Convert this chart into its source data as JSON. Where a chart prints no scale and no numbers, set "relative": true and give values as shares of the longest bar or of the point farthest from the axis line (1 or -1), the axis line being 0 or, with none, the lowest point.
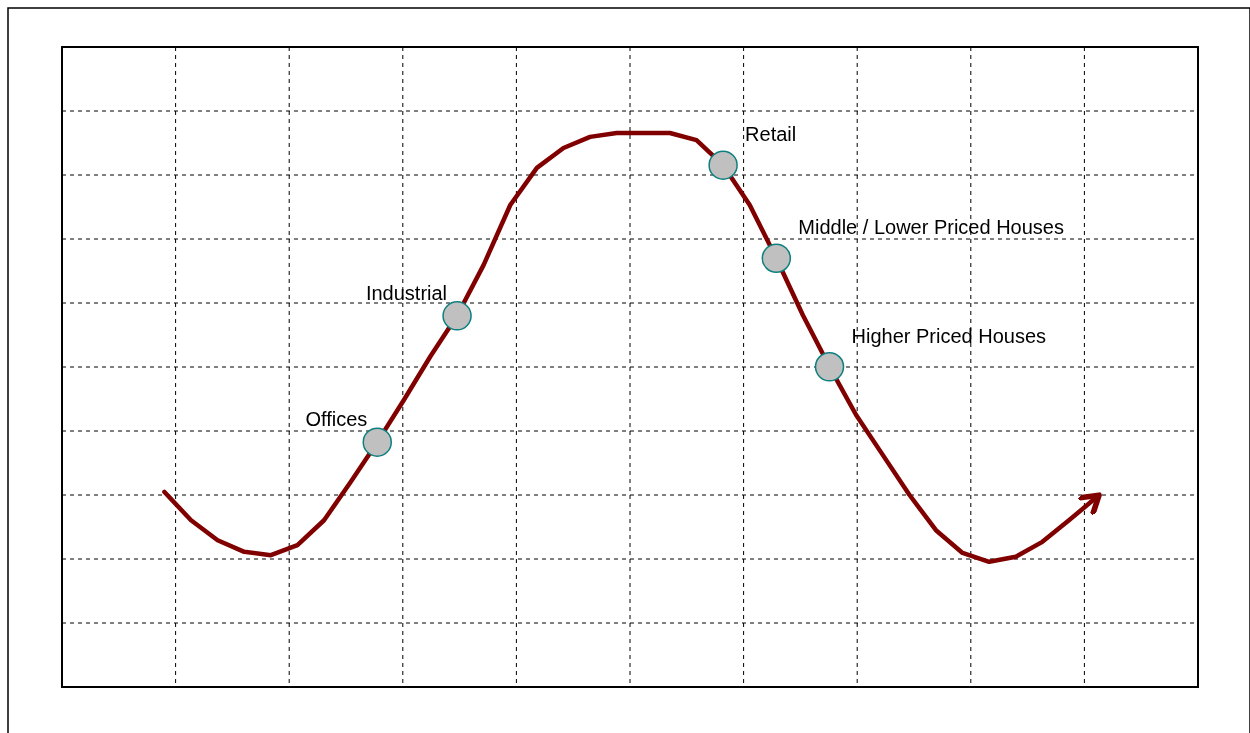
{
  "chart_data": {
    "type": "line",
    "relative": true,
    "grid": true,
    "categories": [
      null,
      null,
      null,
      null,
      null,
      null,
      null,
      null,
      null,
      null,
      null,
      null,
      null,
      null,
      null,
      null,
      null,
      null,
      null,
      null,
      null,
      null,
      null,
      null,
      null,
      null,
      null,
      null,
      null,
      null,
      null,
      null,
      null,
      null,
      null,
      null
    ],
    "series": [
      {
        "color": "#800000",
        "values": [
          0.352,
          0.301,
          0.265,
          0.244,
          0.238,
          0.256,
          0.301,
          0.37,
          0.442,
          0.518,
          0.597,
          0.67,
          0.762,
          0.87,
          0.937,
          0.973,
          0.993,
          1,
          1,
          1,
          0.987,
          0.942,
          0.87,
          0.774,
          0.671,
          0.578,
          0.491,
          0.419,
          0.347,
          0.283,
          0.242,
          0.226,
          0.235,
          0.262,
          0.301,
          0.341
        ]
      }
    ],
    "annotations": [
      "Offices",
      "Industrial",
      "Retail",
      "Middle / Lower Priced Houses",
      "Higher Priced Houses"
    ]
  }
}
